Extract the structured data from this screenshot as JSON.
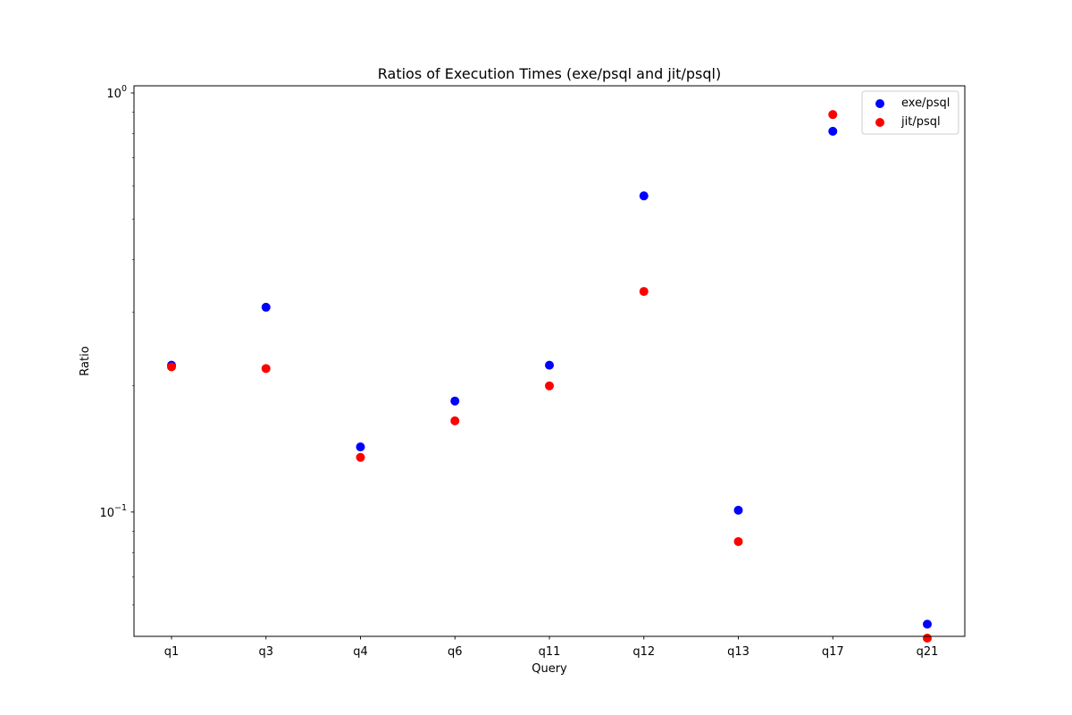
{
  "chart_data": {
    "type": "scatter",
    "title": "Ratios of Execution Times (exe/psql and jit/psql)",
    "xlabel": "Query",
    "ylabel": "Ratio",
    "yscale": "log",
    "ylim": [
      0.0505,
      1.04
    ],
    "y_ticks": [
      {
        "value": 1.0,
        "base": "10",
        "exp": "0"
      },
      {
        "value": 0.1,
        "base": "10",
        "exp": "−1"
      }
    ],
    "categories": [
      "q1",
      "q3",
      "q4",
      "q6",
      "q11",
      "q12",
      "q13",
      "q17",
      "q21"
    ],
    "series": [
      {
        "name": "exe/psql",
        "color": "#0000ff",
        "values": [
          0.224,
          0.308,
          0.143,
          0.184,
          0.224,
          0.568,
          0.101,
          0.81,
          0.054
        ]
      },
      {
        "name": "jit/psql",
        "color": "#ff0000",
        "values": [
          0.222,
          0.22,
          0.135,
          0.165,
          0.2,
          0.336,
          0.085,
          0.888,
          0.05
        ]
      }
    ],
    "grid": false,
    "legend_position": "top-right"
  }
}
